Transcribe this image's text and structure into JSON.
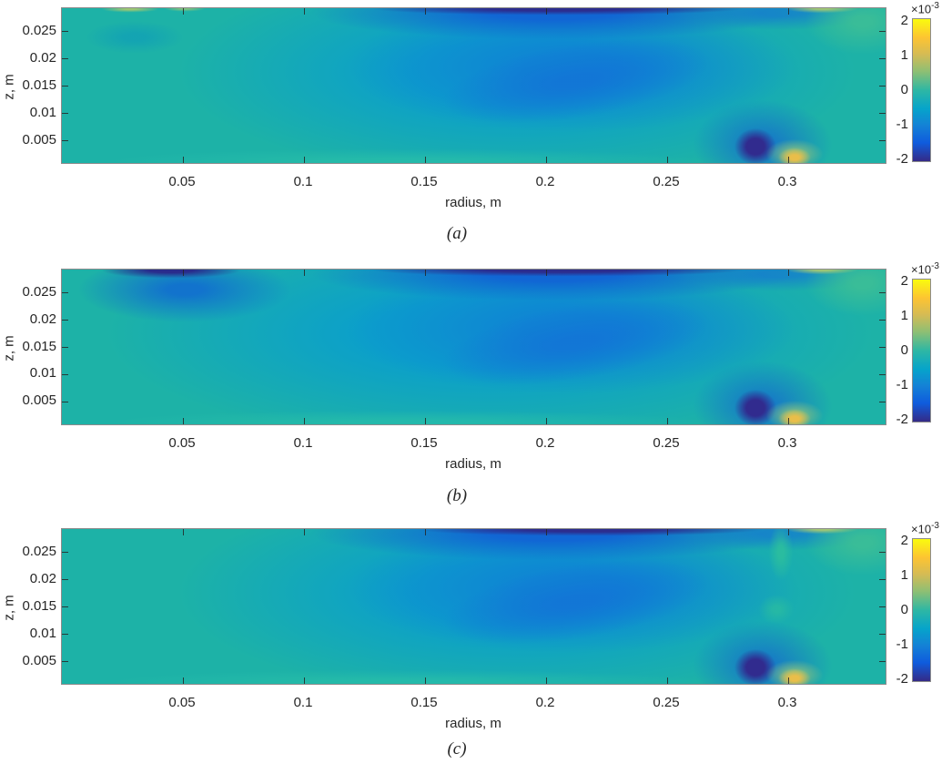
{
  "figure": {
    "description": "Three stacked MATLAB-style filled contour (contourf) panels of an axisymmetric field on the r-z plane, each with a parula colorbar scaled by 1e-3",
    "panel_count": 3
  },
  "palette": {
    "page_background": "#ffffff",
    "field_ambient_teal": "#1db2a7",
    "cyan_mid": "#0a9ecd",
    "blue_lobe": "#1080d5",
    "deep_blue": "#0f5cdd",
    "navy_minimum": "#312b8e",
    "yellow_maximum_spot": "#e9be4a",
    "green_positive": "#3cbe96",
    "axis_text": "#262626",
    "axis_box": "#8c8c8c",
    "colormap_stops_top_to_bottom": [
      "#f9fb0e",
      "#fdc432",
      "#d4bb55",
      "#8dbf74",
      "#2eb7a4",
      "#06a4ca",
      "#1481d6",
      "#0f5cdd",
      "#352a87"
    ]
  },
  "chart_data": [
    {
      "panel": "a",
      "caption": "(a)",
      "type": "heatmap",
      "subtype": "filled-contour",
      "colormap": "parula",
      "xlabel": "radius, m",
      "ylabel": "z, m",
      "xlim": [
        0.005,
        0.34
      ],
      "ylim": [
        0.001,
        0.0295
      ],
      "xticks": [
        0.05,
        0.1,
        0.15,
        0.2,
        0.25,
        0.3
      ],
      "xtick_labels": [
        "0.05",
        "0.1",
        "0.15",
        "0.2",
        "0.25",
        "0.3"
      ],
      "yticks": [
        0.025,
        0.02,
        0.015,
        0.01,
        0.005
      ],
      "ytick_labels": [
        "0.025",
        "0.02",
        "0.015",
        "0.01",
        "0.005"
      ],
      "colorbar": {
        "scale_base": "×10",
        "scale_exp": "-3",
        "scale_label": "×10⁻³",
        "tick_labels": [
          "2",
          "1",
          "0",
          "-1",
          "-2"
        ],
        "tick_values_x1e3": [
          2,
          1,
          0,
          -1,
          -2
        ],
        "range": [
          -0.002,
          0.002
        ],
        "location": "right"
      },
      "features": [
        {
          "name": "ambient-field",
          "value_x1e3": -0.1,
          "note": "teal, slightly negative, fills left wedge, bottom band and right side"
        },
        {
          "name": "broad-negative-lobe",
          "center_r": 0.2,
          "center_z": 0.016,
          "r_range": [
            0.12,
            0.27
          ],
          "value_x1e3": -0.9,
          "note": "elongated blue lobe tilted down to the right"
        },
        {
          "name": "top-edge-negative-band",
          "z": 0.029,
          "r_range": [
            0.1,
            0.31
          ],
          "peak_value_x1e3": -2,
          "note": "thin navy band along top edge, deepest near r=0.2-0.25"
        },
        {
          "name": "near-bottom-negative-sink",
          "center_r": 0.287,
          "center_z": 0.003,
          "peak_value_x1e3": -2,
          "note": "compact navy blob"
        },
        {
          "name": "positive-spot-right-of-sink",
          "center_r": 0.303,
          "center_z": 0.002,
          "peak_value_x1e3": 1.2,
          "note": "small yellow-orange spot at bottom edge"
        },
        {
          "name": "top-right-corner-positive-patch",
          "center_r": 0.325,
          "center_z": 0.028,
          "value_x1e3": 0.4
        },
        {
          "name": "top-left-positive-wisps",
          "center_r": 0.03,
          "z": 0.0293,
          "value_x1e3": 0.5,
          "note": "faint yellow-green wisps at top edge near r=0.02-0.06"
        }
      ]
    },
    {
      "panel": "b",
      "caption": "(b)",
      "type": "heatmap",
      "subtype": "filled-contour",
      "colormap": "parula",
      "xlabel": "radius, m",
      "ylabel": "z, m",
      "xlim": [
        0.005,
        0.34
      ],
      "ylim": [
        0.001,
        0.0295
      ],
      "xticks": [
        0.05,
        0.1,
        0.15,
        0.2,
        0.25,
        0.3
      ],
      "xtick_labels": [
        "0.05",
        "0.1",
        "0.15",
        "0.2",
        "0.25",
        "0.3"
      ],
      "yticks": [
        0.025,
        0.02,
        0.015,
        0.01,
        0.005
      ],
      "ytick_labels": [
        "0.025",
        "0.02",
        "0.015",
        "0.01",
        "0.005"
      ],
      "colorbar": {
        "scale_base": "×10",
        "scale_exp": "-3",
        "scale_label": "×10⁻³",
        "tick_labels": [
          "2",
          "1",
          "0",
          "-1",
          "-2"
        ],
        "tick_values_x1e3": [
          2,
          1,
          0,
          -1,
          -2
        ],
        "range": [
          -0.002,
          0.002
        ],
        "location": "right"
      },
      "features": [
        {
          "name": "ambient-field",
          "value_x1e3": -0.1,
          "note": "teal confined to narrow left wedge and right side; blue covers more area than panel a"
        },
        {
          "name": "top-left-strong-negative-blob",
          "center_r": 0.045,
          "center_z": 0.029,
          "r_range": [
            0.015,
            0.08
          ],
          "peak_value_x1e3": -2,
          "note": "navy blob hugging top edge with blue halo below"
        },
        {
          "name": "broad-negative-lobe",
          "center_r": 0.21,
          "center_z": 0.016,
          "r_range": [
            0.1,
            0.28
          ],
          "value_x1e3": -0.9
        },
        {
          "name": "top-edge-negative-band",
          "z": 0.029,
          "r_range": [
            0.1,
            0.31
          ],
          "peak_value_x1e3": -1.5
        },
        {
          "name": "near-bottom-negative-sink",
          "center_r": 0.287,
          "center_z": 0.003,
          "peak_value_x1e3": -2
        },
        {
          "name": "positive-spot-right-of-sink",
          "center_r": 0.303,
          "center_z": 0.002,
          "peak_value_x1e3": 1.2
        },
        {
          "name": "top-right-corner-positive-patch",
          "center_r": 0.325,
          "center_z": 0.028,
          "value_x1e3": 0.4
        }
      ]
    },
    {
      "panel": "c",
      "caption": "(c)",
      "type": "heatmap",
      "subtype": "filled-contour",
      "colormap": "parula",
      "xlabel": "radius, m",
      "ylabel": "z, m",
      "xlim": [
        0.005,
        0.34
      ],
      "ylim": [
        0.001,
        0.0295
      ],
      "xticks": [
        0.05,
        0.1,
        0.15,
        0.2,
        0.25,
        0.3
      ],
      "xtick_labels": [
        "0.05",
        "0.1",
        "0.15",
        "0.2",
        "0.25",
        "0.3"
      ],
      "yticks": [
        0.025,
        0.02,
        0.015,
        0.01,
        0.005
      ],
      "ytick_labels": [
        "0.025",
        "0.02",
        "0.015",
        "0.01",
        "0.005"
      ],
      "colorbar": {
        "scale_base": "×10",
        "scale_exp": "-3",
        "scale_label": "×10⁻³",
        "tick_labels": [
          "2",
          "1",
          "0",
          "-1",
          "-2"
        ],
        "tick_values_x1e3": [
          2,
          1,
          0,
          -1,
          -2
        ],
        "range": [
          -0.002,
          0.002
        ],
        "location": "right"
      },
      "features": [
        {
          "name": "ambient-field",
          "value_x1e3": -0.1,
          "note": "teal with faint diagonal contour striations on left half"
        },
        {
          "name": "broad-negative-lobe",
          "center_r": 0.2,
          "center_z": 0.016,
          "r_range": [
            0.12,
            0.27
          ],
          "value_x1e3": -0.9
        },
        {
          "name": "top-edge-negative-band",
          "z": 0.029,
          "r_range": [
            0.13,
            0.31
          ],
          "peak_value_x1e3": -2,
          "note": "deepest near r=0.26-0.29"
        },
        {
          "name": "near-bottom-negative-sink",
          "center_r": 0.287,
          "center_z": 0.003,
          "peak_value_x1e3": -2
        },
        {
          "name": "positive-spot-right-of-sink",
          "center_r": 0.303,
          "center_z": 0.002,
          "peak_value_x1e3": 1.2
        },
        {
          "name": "right-side-positive-streak",
          "center_r": 0.3,
          "center_z": 0.026,
          "value_x1e3": 0.3,
          "note": "greenish vertical streak below top-right corner"
        },
        {
          "name": "top-right-corner-positive-patch",
          "center_r": 0.325,
          "center_z": 0.028,
          "value_x1e3": 0.4
        }
      ]
    }
  ]
}
